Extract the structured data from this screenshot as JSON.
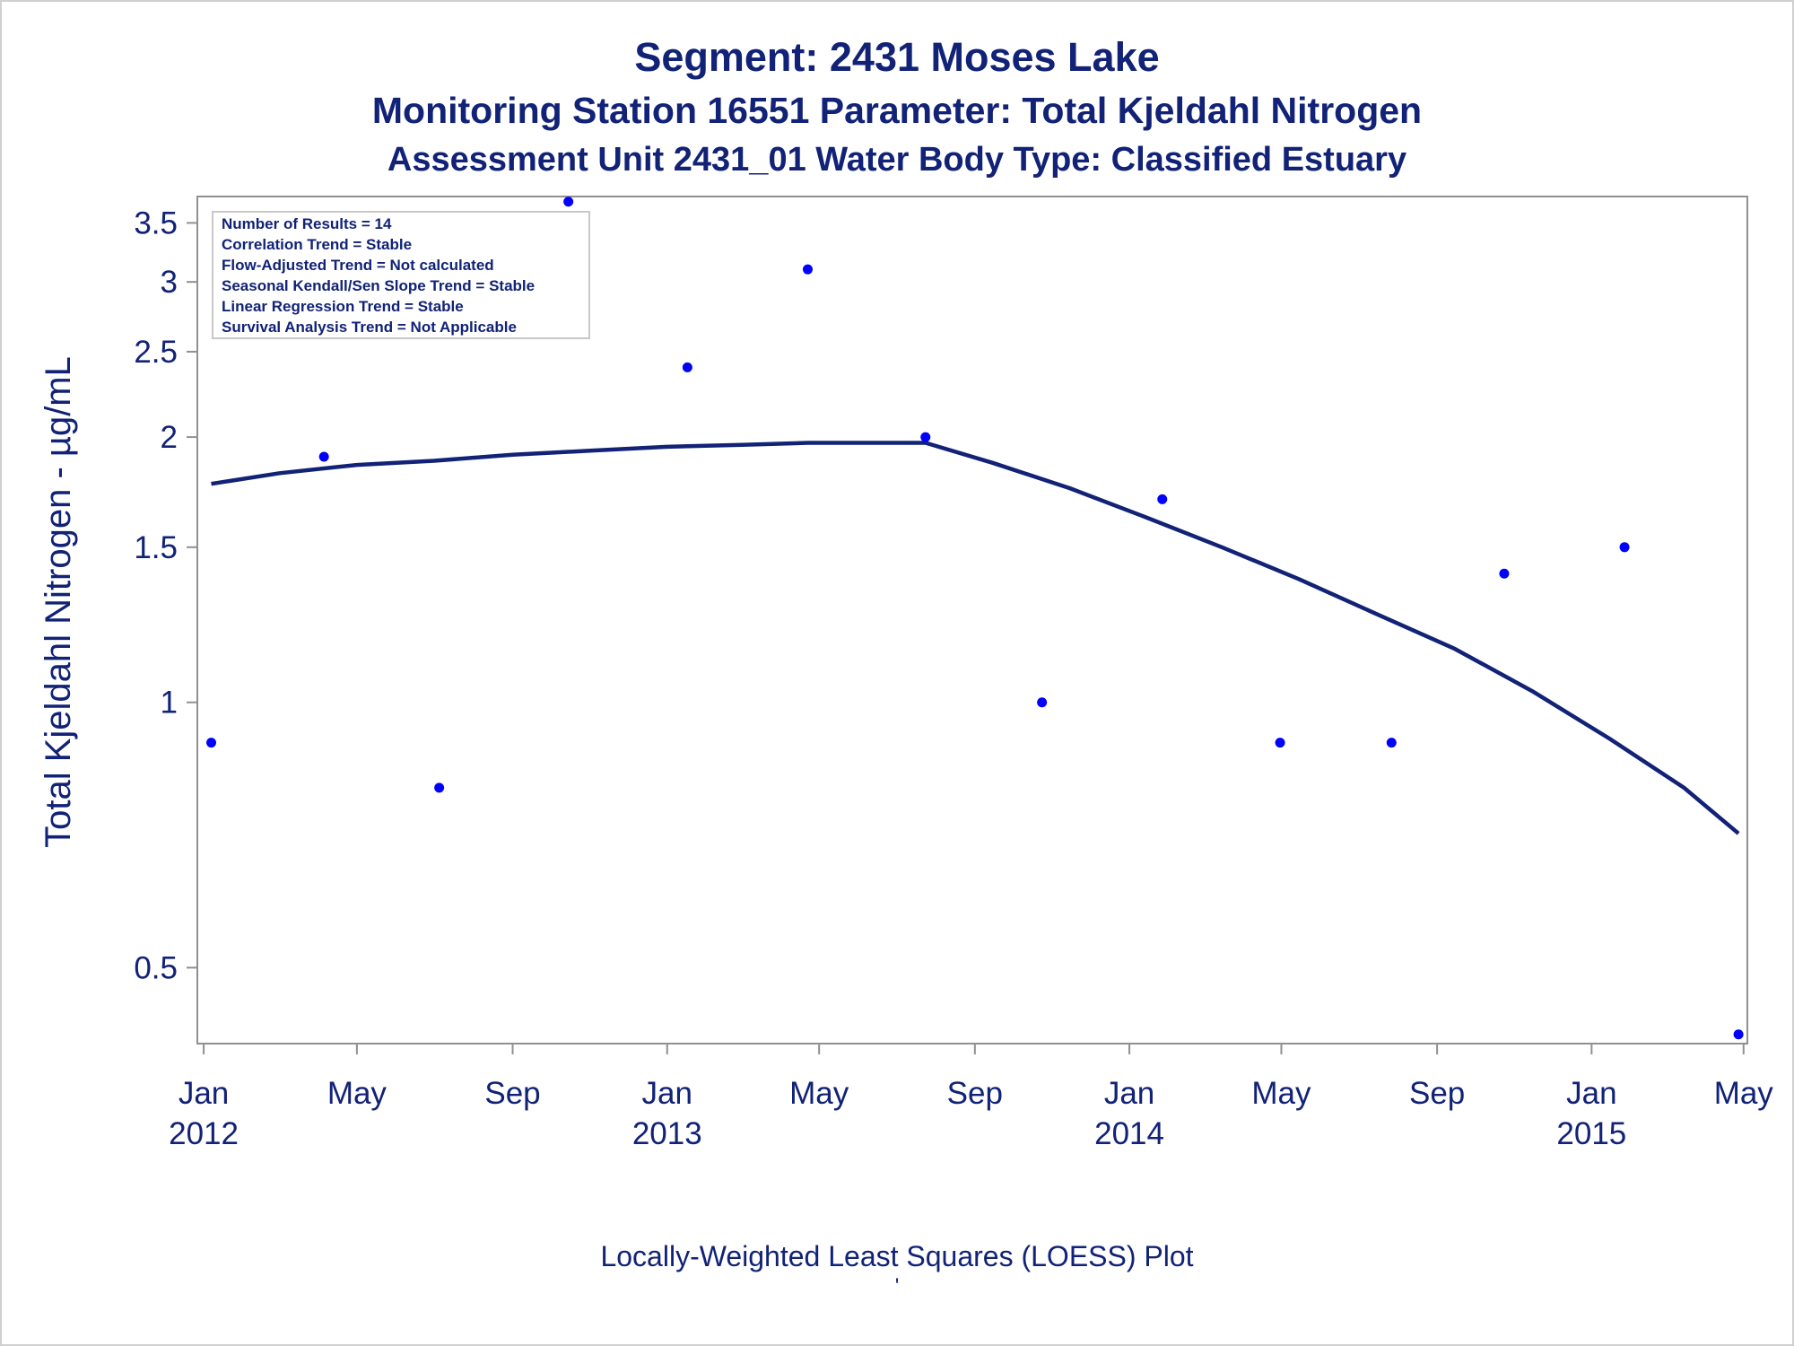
{
  "titles": {
    "line1": "Segment: 2431  Moses Lake",
    "line2": "Monitoring Station 16551 Parameter: Total Kjeldahl Nitrogen",
    "line3": "Assessment Unit 2431_01   Water Body Type: Classified Estuary"
  },
  "footnote": "Locally-Weighted Least Squares (LOESS) Plot",
  "footnote_mark": "'",
  "legend": [
    "Number of Results = 14",
    "Correlation Trend = Stable",
    "Flow-Adjusted Trend = Not calculated",
    "Seasonal Kendall/Sen Slope Trend = Stable",
    "Linear Regression Trend = Stable",
    "Survival Analysis Trend = Not Applicable"
  ],
  "colors": {
    "points": "#0000ff",
    "loess_line": "#112277",
    "text": "#112277",
    "axis": "#909090"
  },
  "chart_data": {
    "type": "scatter",
    "ylabel": "Total Kjeldahl Nitrogen -  µg/mL",
    "xlabel": "",
    "y_scale": "log",
    "ylim": [
      0.41,
      3.75
    ],
    "xlim": [
      "2011-12-27",
      "2015-05-04"
    ],
    "yticks": [
      0.5,
      1,
      1.5,
      2,
      2.5,
      3,
      3.5
    ],
    "ytick_labels": [
      "0.5",
      "1",
      "1.5",
      "2",
      "2.5",
      "3",
      "3.5"
    ],
    "xticks": [
      {
        "date": "2012-01-01",
        "label": "Jan",
        "year": "2012"
      },
      {
        "date": "2012-05-01",
        "label": "May",
        "year": ""
      },
      {
        "date": "2012-09-01",
        "label": "Sep",
        "year": ""
      },
      {
        "date": "2013-01-01",
        "label": "Jan",
        "year": "2013"
      },
      {
        "date": "2013-05-01",
        "label": "May",
        "year": ""
      },
      {
        "date": "2013-09-01",
        "label": "Sep",
        "year": ""
      },
      {
        "date": "2014-01-01",
        "label": "Jan",
        "year": "2014"
      },
      {
        "date": "2014-05-01",
        "label": "May",
        "year": ""
      },
      {
        "date": "2014-09-01",
        "label": "Sep",
        "year": ""
      },
      {
        "date": "2015-01-01",
        "label": "Jan",
        "year": "2015"
      },
      {
        "date": "2015-05-01",
        "label": "May",
        "year": ""
      }
    ],
    "grid": false,
    "legend_position": "top-left",
    "points": [
      {
        "date": "2012-01-07",
        "value": 0.9
      },
      {
        "date": "2012-04-05",
        "value": 1.9
      },
      {
        "date": "2012-07-05",
        "value": 0.8
      },
      {
        "date": "2012-10-15",
        "value": 3.7
      },
      {
        "date": "2013-01-17",
        "value": 2.4
      },
      {
        "date": "2013-04-22",
        "value": 3.1
      },
      {
        "date": "2013-07-24",
        "value": 2.0
      },
      {
        "date": "2013-10-24",
        "value": 1.0
      },
      {
        "date": "2014-01-27",
        "value": 1.7
      },
      {
        "date": "2014-04-30",
        "value": 0.9
      },
      {
        "date": "2014-07-27",
        "value": 0.9
      },
      {
        "date": "2014-10-24",
        "value": 1.4
      },
      {
        "date": "2015-01-27",
        "value": 1.5
      },
      {
        "date": "2015-04-27",
        "value": 0.42
      }
    ],
    "loess": [
      {
        "date": "2012-01-07",
        "value": 1.77
      },
      {
        "date": "2012-03-01",
        "value": 1.82
      },
      {
        "date": "2012-05-01",
        "value": 1.86
      },
      {
        "date": "2012-07-01",
        "value": 1.88
      },
      {
        "date": "2012-09-01",
        "value": 1.91
      },
      {
        "date": "2012-11-01",
        "value": 1.93
      },
      {
        "date": "2013-01-01",
        "value": 1.95
      },
      {
        "date": "2013-03-01",
        "value": 1.96
      },
      {
        "date": "2013-04-22",
        "value": 1.97
      },
      {
        "date": "2013-07-24",
        "value": 1.97
      },
      {
        "date": "2013-09-15",
        "value": 1.87
      },
      {
        "date": "2013-11-15",
        "value": 1.75
      },
      {
        "date": "2014-01-15",
        "value": 1.62
      },
      {
        "date": "2014-03-15",
        "value": 1.5
      },
      {
        "date": "2014-05-15",
        "value": 1.38
      },
      {
        "date": "2014-07-15",
        "value": 1.26
      },
      {
        "date": "2014-09-15",
        "value": 1.15
      },
      {
        "date": "2014-11-15",
        "value": 1.03
      },
      {
        "date": "2015-01-15",
        "value": 0.91
      },
      {
        "date": "2015-03-15",
        "value": 0.8
      },
      {
        "date": "2015-04-27",
        "value": 0.71
      }
    ]
  }
}
